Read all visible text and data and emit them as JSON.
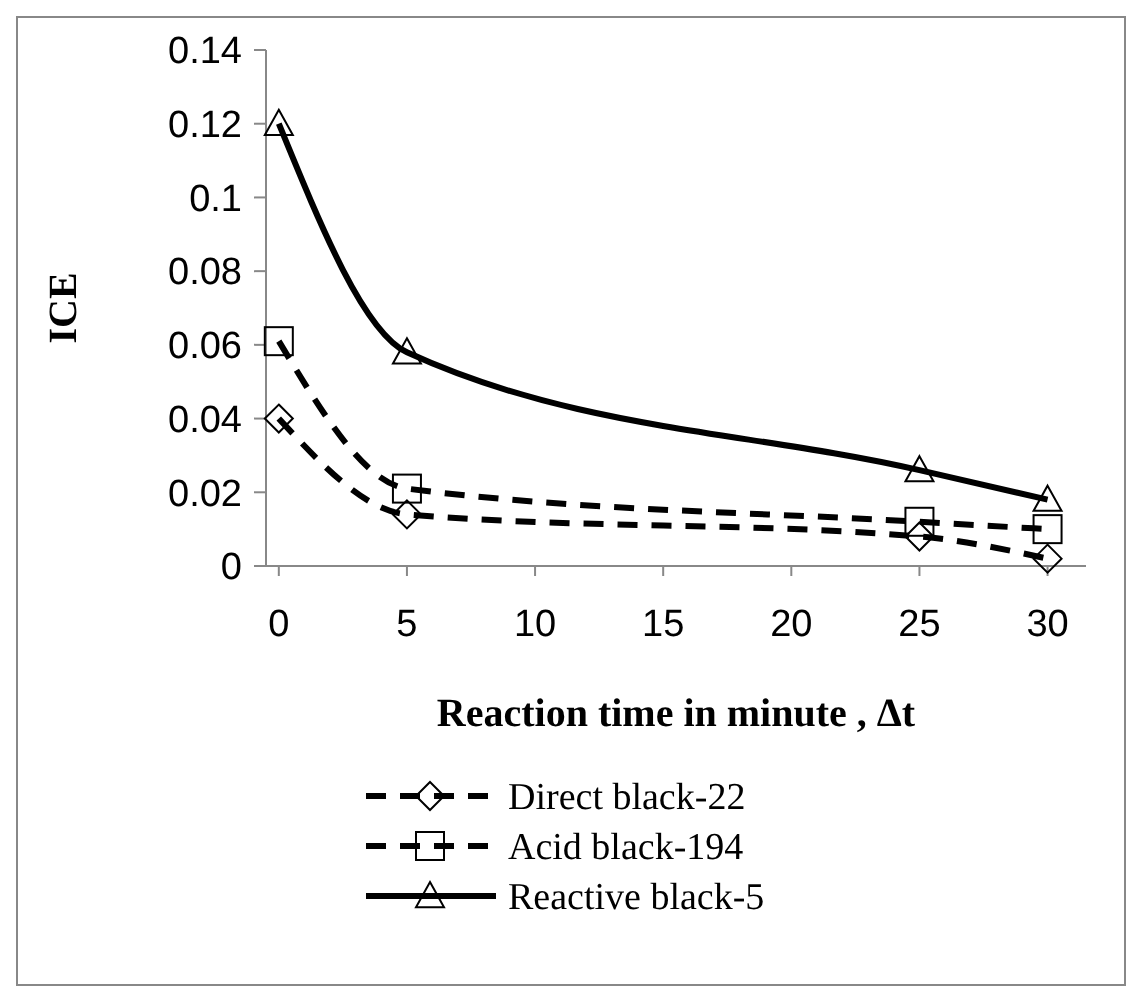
{
  "chart_data": {
    "type": "line",
    "xlabel": "Reaction  time in minute , Δt",
    "ylabel": "ICE",
    "x": [
      0,
      5,
      25,
      30
    ],
    "xlim": [
      -0.5,
      31.5
    ],
    "xticks": [
      0,
      5,
      10,
      15,
      20,
      25,
      30
    ],
    "ylim": [
      0,
      0.14
    ],
    "yticks": [
      0,
      0.02,
      0.04,
      0.06,
      0.08,
      0.1,
      0.12,
      0.14
    ],
    "grid": false,
    "legend": "bottom",
    "series": [
      {
        "name": "Direct black-22",
        "color": "#000000",
        "values": [
          0.04,
          0.014,
          0.008,
          0.002
        ],
        "marker": "diamond",
        "line_style": "dashed"
      },
      {
        "name": "Acid black-194",
        "color": "#000000",
        "values": [
          0.061,
          0.021,
          0.012,
          0.01
        ],
        "marker": "square",
        "line_style": "dashed"
      },
      {
        "name": "Reactive black-5",
        "color": "#000000",
        "values": [
          0.12,
          0.058,
          0.026,
          0.018
        ],
        "marker": "triangle",
        "line_style": "solid"
      }
    ]
  }
}
